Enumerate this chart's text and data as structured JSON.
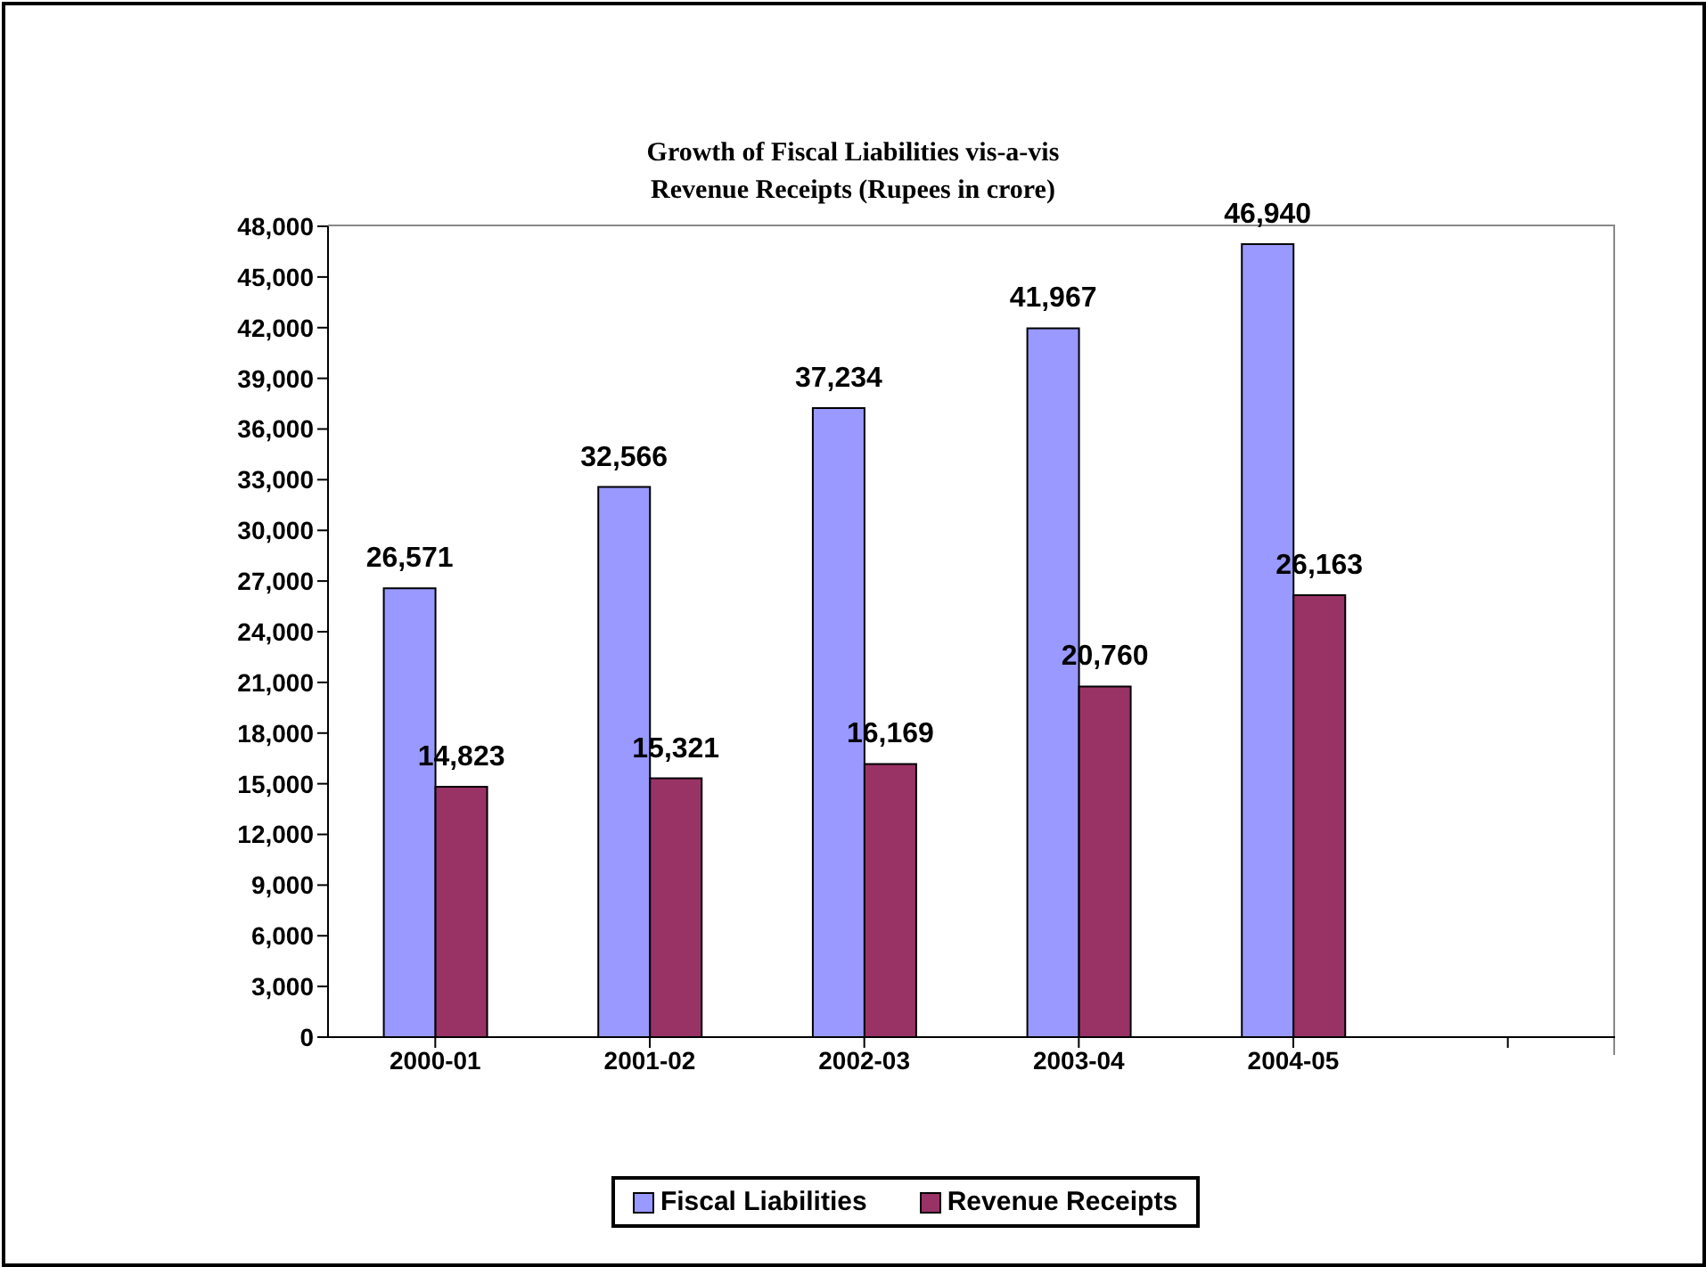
{
  "chart_data": {
    "type": "bar",
    "title": "Growth of Fiscal Liabilities vis-a-vis\nRevenue Receipts  (Rupees in crore)",
    "categories": [
      "2000-01",
      "2001-02",
      "2002-03",
      "2003-04",
      "2004-05",
      null
    ],
    "series": [
      {
        "name": "Fiscal Liabilities",
        "color": "#9999ff",
        "values": [
          26571,
          32566,
          37234,
          41967,
          46940,
          null
        ],
        "value_labels": [
          "26,571",
          "32,566",
          "37,234",
          "41,967",
          "46,940",
          null
        ]
      },
      {
        "name": "Revenue Receipts",
        "color": "#993366",
        "values": [
          14823,
          15321,
          16169,
          20760,
          26163,
          null
        ],
        "value_labels": [
          "14,823",
          "15,321",
          "16,169",
          "20,760",
          "26,163",
          null
        ]
      }
    ],
    "ylim": [
      0,
      48000
    ],
    "yticks": [
      0,
      {
        "value": 3000,
        "label": "3,000"
      },
      {
        "value": 6000,
        "label": "6,000"
      },
      {
        "value": 9000,
        "label": "9,000"
      },
      {
        "value": 12000,
        "label": "12,000"
      },
      {
        "value": 15000,
        "label": "15,000"
      },
      {
        "value": 18000,
        "label": "18,000"
      },
      {
        "value": 21000,
        "label": "21,000"
      },
      {
        "value": 24000,
        "label": "24,000"
      },
      {
        "value": 27000,
        "label": "27,000"
      },
      {
        "value": 30000,
        "label": "30,000"
      },
      {
        "value": 33000,
        "label": "33,000"
      },
      {
        "value": 36000,
        "label": "36,000"
      },
      {
        "value": 39000,
        "label": "39,000"
      },
      {
        "value": 42000,
        "label": "42,000"
      },
      {
        "value": 45000,
        "label": "45,000"
      },
      {
        "value": 48000,
        "label": "48,000"
      }
    ],
    "legend": "bottom"
  }
}
